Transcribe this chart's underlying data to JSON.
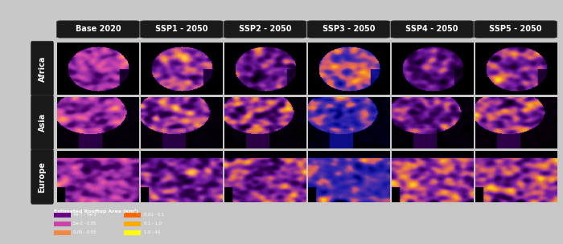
{
  "col_labels": [
    "Base 2020",
    "SSP1 - 2050",
    "SSP2 - 2050",
    "SSP3 - 2050",
    "SSP4 - 2050",
    "SSP5 - 2050"
  ],
  "row_labels": [
    "Africa",
    "Asia",
    "Europe"
  ],
  "background_color": "#111111",
  "label_box_color": "#1a1a1a",
  "label_text_color": "#ffffff",
  "figure_bg": "#c8c8c8",
  "legend_title": "Estimated Rooftop Area (km²)",
  "legend_items": [
    {
      "label": "4e-07 - 5e-3",
      "color": "#6a0dad"
    },
    {
      "label": "5e-3 - 0.05",
      "color": "#cc44aa"
    },
    {
      "label": "0.05 - 0.05",
      "color": "#ee8844"
    },
    {
      "label": "0.01 - 0.1",
      "color": "#ff8800"
    },
    {
      "label": "0.1 - 1.0",
      "color": "#ffcc00"
    },
    {
      "label": "1.0 - 40",
      "color": "#ffff00"
    }
  ],
  "col_label_fontsize": 7,
  "row_label_fontsize": 7,
  "n_rows": 3,
  "n_cols": 6,
  "cell_aspect": 0.85
}
